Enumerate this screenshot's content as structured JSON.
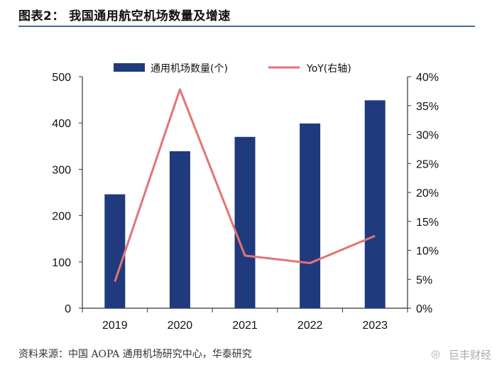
{
  "title": "图表2：  我国通用航空机场数量及增速",
  "source": "资料来源：中国 AOPA 通用机场研究中心，华泰研究",
  "watermark": "巨丰财经",
  "watermark_icon": "weibo-icon",
  "colors": {
    "bar": "#1f3a7d",
    "line": "#e57373",
    "rule": "#4a6c8f"
  },
  "chart_data": {
    "type": "bar",
    "categories": [
      "2019",
      "2020",
      "2021",
      "2022",
      "2023"
    ],
    "series": [
      {
        "name": "通用机场数量(个)",
        "type": "bar",
        "axis": "left",
        "values": [
          246,
          339,
          370,
          399,
          449
        ]
      },
      {
        "name": "YoY(右轴)",
        "type": "line",
        "axis": "right",
        "values": [
          0.046,
          0.378,
          0.091,
          0.078,
          0.125
        ]
      }
    ],
    "ylim": [
      0,
      500
    ],
    "y_ticks": [
      "0",
      "100",
      "200",
      "300",
      "400",
      "500"
    ],
    "y2lim": [
      0,
      0.4
    ],
    "y2_ticks": [
      "0%",
      "5%",
      "10%",
      "15%",
      "20%",
      "25%",
      "30%",
      "35%",
      "40%"
    ],
    "legend_position": "top-center",
    "grid": false
  }
}
